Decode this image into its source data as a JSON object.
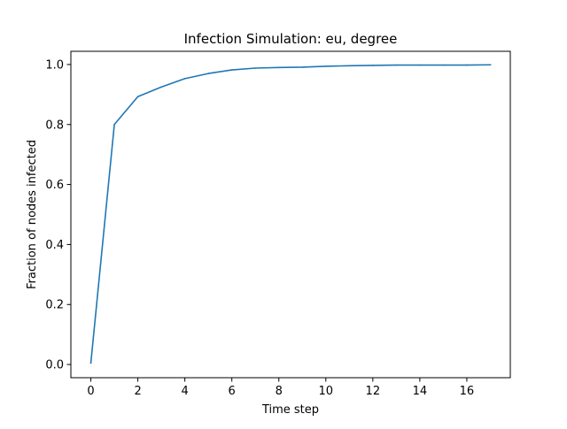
{
  "chart_data": {
    "type": "line",
    "title": "Infection Simulation: eu, degree",
    "xlabel": "Time step",
    "ylabel": "Fraction of nodes infected",
    "xlim": [
      -0.85,
      17.85
    ],
    "ylim": [
      -0.044,
      1.044
    ],
    "xticks": [
      0,
      2,
      4,
      6,
      8,
      10,
      12,
      14,
      16
    ],
    "yticks": [
      0.0,
      0.2,
      0.4,
      0.6,
      0.8,
      1.0
    ],
    "xtick_labels": [
      "0",
      "2",
      "4",
      "6",
      "8",
      "10",
      "12",
      "14",
      "16"
    ],
    "ytick_labels": [
      "0.0",
      "0.2",
      "0.4",
      "0.6",
      "0.8",
      "1.0"
    ],
    "grid": false,
    "series": [
      {
        "color": "#1f77b4",
        "x": [
          0,
          1,
          2,
          3,
          4,
          5,
          6,
          7,
          8,
          9,
          10,
          11,
          12,
          13,
          14,
          15,
          16,
          17
        ],
        "y": [
          0.005,
          0.8,
          0.893,
          0.925,
          0.953,
          0.97,
          0.982,
          0.988,
          0.99,
          0.991,
          0.994,
          0.996,
          0.997,
          0.998,
          0.998,
          0.998,
          0.998,
          0.999
        ]
      }
    ]
  }
}
